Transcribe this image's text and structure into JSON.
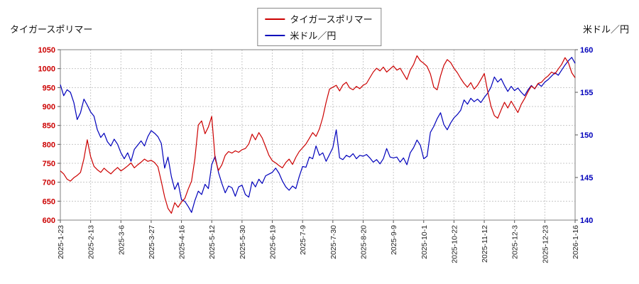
{
  "titles": {
    "top_left": "タイガースポリマー",
    "top_right": "米ドル／円"
  },
  "legend": {
    "items": [
      {
        "label": "タイガースポリマー",
        "color": "#cc0000"
      },
      {
        "label": "米ドル／円",
        "color": "#0000bb"
      }
    ]
  },
  "colors": {
    "price_series": "#cc0000",
    "fx_series": "#0000bb",
    "left_axis_labels": "#cc0000",
    "right_axis_labels": "#0000bb",
    "grid": "#c8c8c8",
    "plot_border": "#808080",
    "x_labels": "#222222"
  },
  "chart_data": {
    "type": "line",
    "title": "",
    "grid": true,
    "legend_position": "top-center",
    "x_tick_labels": [
      "2025-1-23",
      "2025-2-13",
      "2025-3-6",
      "2025-3-27",
      "2025-4-16",
      "2025-5-12",
      "2025-5-30",
      "2025-6-19",
      "2025-7-9",
      "2025-7-30",
      "2025-8-20",
      "2025-9-9",
      "2025-10-1",
      "2025-10-22",
      "2025-11-12",
      "2025-12-3",
      "2025-12-23",
      "2026-1-16"
    ],
    "left_axis": {
      "label": "タイガースポリマー",
      "min": 600,
      "max": 1050,
      "step": 50,
      "tick_labels": [
        "600",
        "650",
        "700",
        "750",
        "800",
        "850",
        "900",
        "950",
        "1000",
        "1050"
      ]
    },
    "right_axis": {
      "label": "米ドル／円",
      "min": 140,
      "max": 160,
      "step": 5,
      "tick_labels": [
        "140",
        "145",
        "150",
        "155",
        "160"
      ]
    },
    "series": [
      {
        "name": "タイガースポリマー",
        "axis": "left",
        "color": "#cc0000",
        "values": [
          730,
          722,
          708,
          703,
          712,
          718,
          726,
          762,
          812,
          768,
          742,
          733,
          726,
          737,
          729,
          722,
          731,
          739,
          730,
          736,
          743,
          751,
          738,
          746,
          753,
          761,
          755,
          758,
          752,
          741,
          702,
          661,
          631,
          618,
          646,
          634,
          648,
          657,
          682,
          703,
          762,
          851,
          862,
          828,
          846,
          874,
          762,
          731,
          746,
          771,
          781,
          777,
          783,
          779,
          786,
          789,
          801,
          827,
          812,
          831,
          817,
          794,
          771,
          757,
          751,
          744,
          738,
          752,
          761,
          747,
          766,
          781,
          791,
          801,
          816,
          831,
          821,
          841,
          871,
          911,
          946,
          951,
          956,
          941,
          957,
          964,
          949,
          944,
          953,
          947,
          956,
          961,
          976,
          991,
          1001,
          994,
          1004,
          991,
          999,
          1007,
          996,
          1001,
          986,
          971,
          996,
          1011,
          1034,
          1021,
          1014,
          1006,
          986,
          951,
          944,
          981,
          1009,
          1024,
          1016,
          1001,
          989,
          974,
          961,
          951,
          963,
          946,
          956,
          971,
          987,
          941,
          901,
          876,
          869,
          891,
          911,
          896,
          914,
          899,
          884,
          906,
          921,
          939,
          954,
          947,
          961,
          964,
          974,
          981,
          991,
          986,
          999,
          1011,
          1029,
          1016,
          989,
          976
        ]
      },
      {
        "name": "米ドル／円",
        "axis": "right",
        "color": "#0000bb",
        "values": [
          155.9,
          154.6,
          155.3,
          155.0,
          153.8,
          151.8,
          152.6,
          154.2,
          153.5,
          152.7,
          152.2,
          150.6,
          149.7,
          150.2,
          149.2,
          148.7,
          149.5,
          148.9,
          147.9,
          147.2,
          147.9,
          146.9,
          148.3,
          148.8,
          149.3,
          148.7,
          149.8,
          150.5,
          150.2,
          149.8,
          149.0,
          146.1,
          147.4,
          145.1,
          143.6,
          144.4,
          142.4,
          142.2,
          141.6,
          140.9,
          142.3,
          143.4,
          143.0,
          144.2,
          143.7,
          146.5,
          147.5,
          145.6,
          144.3,
          143.2,
          144.0,
          143.8,
          142.8,
          143.9,
          144.1,
          143.0,
          142.7,
          144.5,
          143.9,
          144.8,
          144.3,
          145.2,
          145.4,
          145.6,
          146.1,
          145.5,
          144.6,
          143.9,
          143.5,
          144.0,
          143.7,
          145.1,
          146.3,
          146.2,
          147.4,
          147.2,
          148.7,
          147.6,
          147.9,
          146.9,
          147.7,
          148.5,
          150.6,
          147.3,
          147.1,
          147.6,
          147.4,
          147.8,
          147.2,
          147.6,
          147.5,
          147.7,
          147.3,
          146.8,
          147.1,
          146.6,
          147.2,
          148.4,
          147.4,
          147.3,
          147.4,
          146.8,
          147.3,
          146.5,
          147.9,
          148.5,
          149.4,
          148.8,
          147.2,
          147.5,
          150.3,
          151.0,
          151.9,
          152.6,
          151.2,
          150.6,
          151.4,
          152.0,
          152.4,
          152.9,
          154.1,
          153.6,
          154.3,
          153.9,
          154.2,
          153.8,
          154.4,
          154.9,
          155.6,
          156.8,
          156.2,
          156.6,
          155.8,
          155.1,
          155.7,
          155.2,
          155.5,
          155.0,
          154.6,
          155.3,
          155.8,
          155.4,
          156.0,
          155.7,
          156.2,
          156.5,
          156.9,
          157.3,
          157.0,
          157.6,
          158.2,
          158.7,
          159.1,
          158.4
        ]
      }
    ]
  }
}
